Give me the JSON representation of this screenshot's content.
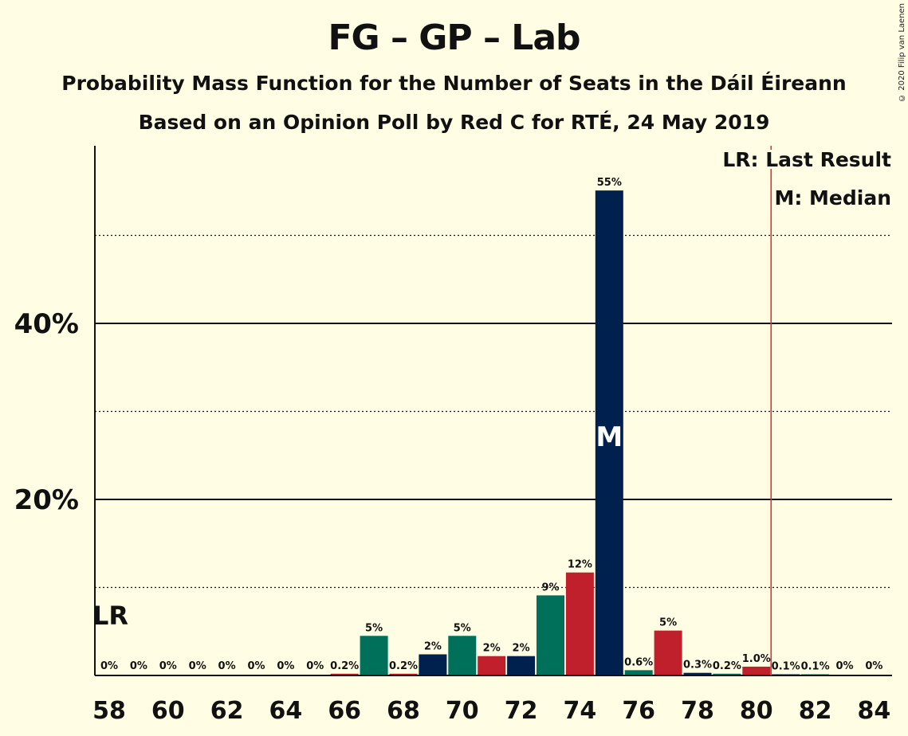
{
  "title": "FG – GP – Lab",
  "subtitle1": "Probability Mass Function for the Number of Seats in the Dáil Éireann",
  "subtitle2": "Based on an Opinion Poll by Red C for RTÉ, 24 May 2019",
  "copyright": "© 2020 Filip van Laenen",
  "legend": {
    "lr": "LR: Last Result",
    "median": "M: Median"
  },
  "marks": {
    "lr": "LR",
    "median": "M"
  },
  "colors": {
    "background": "#fffde3",
    "fg": "#00204e",
    "gp": "#00705a",
    "lab": "#c0202c",
    "lr_line": "#e0303a"
  },
  "chart_data": {
    "type": "bar",
    "x": [
      58,
      59,
      60,
      61,
      62,
      63,
      64,
      65,
      66,
      67,
      68,
      69,
      70,
      71,
      72,
      73,
      74,
      75,
      76,
      77,
      78,
      79,
      80,
      81,
      82,
      83,
      84
    ],
    "values": [
      0,
      0,
      0,
      0,
      0,
      0,
      0,
      0,
      0.2,
      4.5,
      0.2,
      2.4,
      4.5,
      2.2,
      2.2,
      9.1,
      11.7,
      55.1,
      0.6,
      5.1,
      0.3,
      0.2,
      1.0,
      0.1,
      0.1,
      0,
      0
    ],
    "labels": [
      "0%",
      "0%",
      "0%",
      "0%",
      "0%",
      "0%",
      "0%",
      "0%",
      "0.2%",
      "5%",
      "0.2%",
      "2%",
      "5%",
      "2%",
      "2%",
      "9%",
      "12%",
      "55%",
      "0.6%",
      "5%",
      "0.3%",
      "0.2%",
      "1.0%",
      "0.1%",
      "0.1%",
      "0%",
      "0%"
    ],
    "bar_colors": [
      "fg",
      "gp",
      "lab",
      "fg",
      "gp",
      "lab",
      "fg",
      "gp",
      "lab",
      "gp",
      "lab",
      "fg",
      "gp",
      "lab",
      "fg",
      "gp",
      "lab",
      "fg",
      "gp",
      "lab",
      "fg",
      "gp",
      "lab",
      "fg",
      "gp",
      "lab",
      "fg"
    ],
    "x_ticks": [
      "58",
      "60",
      "62",
      "64",
      "66",
      "68",
      "70",
      "72",
      "74",
      "76",
      "78",
      "80",
      "82",
      "84"
    ],
    "y_ticks": [
      "20%",
      "40%"
    ],
    "ylim": [
      0,
      60
    ],
    "solid_gridlines": [
      20,
      40
    ],
    "dotted_gridlines": [
      10,
      30,
      50
    ],
    "last_result": 80.5,
    "last_result_label_at": 58,
    "median": 75
  }
}
